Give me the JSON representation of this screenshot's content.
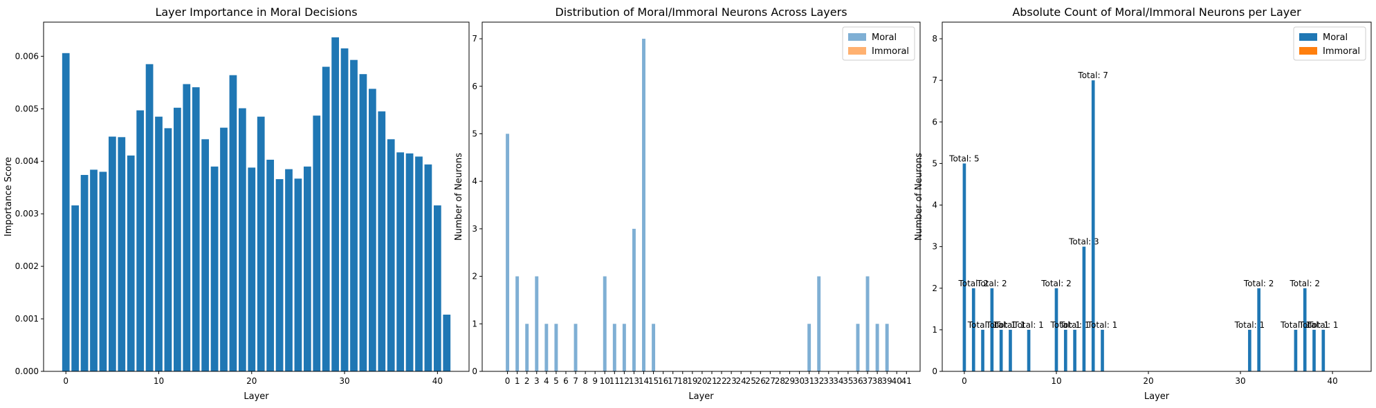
{
  "colors": {
    "bar_blue": "#1f77b4",
    "moral_light": "#7fafd4",
    "immoral_light": "#ffb170",
    "immoral": "#ff7f0e"
  },
  "chart_data": [
    {
      "type": "bar",
      "title": "Layer Importance in Moral Decisions",
      "xlabel": "Layer",
      "ylabel": "Importance Score",
      "x": [
        0,
        1,
        2,
        3,
        4,
        5,
        6,
        7,
        8,
        9,
        10,
        11,
        12,
        13,
        14,
        15,
        16,
        17,
        18,
        19,
        20,
        21,
        22,
        23,
        24,
        25,
        26,
        27,
        28,
        29,
        30,
        31,
        32,
        33,
        34,
        35,
        36,
        37,
        38,
        39,
        40,
        41
      ],
      "values": [
        0.00606,
        0.00316,
        0.00374,
        0.00384,
        0.0038,
        0.00447,
        0.00446,
        0.00411,
        0.00497,
        0.00585,
        0.00485,
        0.00463,
        0.00502,
        0.00547,
        0.00541,
        0.00442,
        0.0039,
        0.00464,
        0.00564,
        0.00501,
        0.00388,
        0.00485,
        0.00403,
        0.00366,
        0.00385,
        0.00367,
        0.0039,
        0.00487,
        0.0058,
        0.00636,
        0.00615,
        0.00593,
        0.00566,
        0.00538,
        0.00495,
        0.00442,
        0.00417,
        0.00415,
        0.00409,
        0.00394,
        0.00316,
        0.00108
      ],
      "xlim": [
        -2.4,
        43.4
      ],
      "ylim": [
        0,
        0.00665
      ],
      "xticks": [
        0,
        10,
        20,
        30,
        40
      ],
      "xtick_labels": [
        "0",
        "10",
        "20",
        "30",
        "40"
      ],
      "yticks": [
        0,
        0.001,
        0.002,
        0.003,
        0.004,
        0.005,
        0.006
      ],
      "ytick_labels": [
        "0.000",
        "0.001",
        "0.002",
        "0.003",
        "0.004",
        "0.005",
        "0.006"
      ]
    },
    {
      "type": "bar",
      "title": "Distribution of Moral/Immoral Neurons Across Layers",
      "xlabel": "Layer",
      "ylabel": "Number of Neurons",
      "categories": [
        "0",
        "1",
        "2",
        "3",
        "4",
        "5",
        "6",
        "7",
        "8",
        "9",
        "10",
        "11",
        "12",
        "13",
        "14",
        "15",
        "16",
        "17",
        "18",
        "19",
        "20",
        "21",
        "22",
        "23",
        "24",
        "25",
        "26",
        "27",
        "28",
        "29",
        "30",
        "31",
        "32",
        "33",
        "34",
        "35",
        "36",
        "37",
        "38",
        "39",
        "40",
        "41"
      ],
      "series": [
        {
          "name": "Moral",
          "values": [
            5,
            2,
            1,
            2,
            1,
            1,
            0,
            1,
            0,
            0,
            2,
            1,
            1,
            3,
            7,
            1,
            0,
            0,
            0,
            0,
            0,
            0,
            0,
            0,
            0,
            0,
            0,
            0,
            0,
            0,
            0,
            1,
            2,
            0,
            0,
            0,
            1,
            2,
            1,
            1,
            0,
            0
          ]
        },
        {
          "name": "Immoral",
          "values": [
            0,
            0,
            0,
            0,
            0,
            0,
            0,
            0,
            0,
            0,
            0,
            0,
            0,
            0,
            0,
            0,
            0,
            0,
            0,
            0,
            0,
            0,
            0,
            0,
            0,
            0,
            0,
            0,
            0,
            0,
            0,
            0,
            0,
            0,
            0,
            0,
            0,
            0,
            0,
            0,
            0,
            0
          ]
        }
      ],
      "xlim": [
        -2.6,
        42.4
      ],
      "ylim": [
        0,
        7.35
      ],
      "yticks": [
        0,
        1,
        2,
        3,
        4,
        5,
        6,
        7
      ],
      "ytick_labels": [
        "0",
        "1",
        "2",
        "3",
        "4",
        "5",
        "6",
        "7"
      ],
      "legend": "top-right"
    },
    {
      "type": "bar",
      "title": "Absolute Count of Moral/Immoral Neurons per Layer",
      "xlabel": "Layer",
      "ylabel": "Number of Neurons",
      "x": [
        0,
        1,
        2,
        3,
        4,
        5,
        7,
        10,
        11,
        12,
        13,
        14,
        15,
        31,
        32,
        36,
        37,
        38,
        39
      ],
      "series": [
        {
          "name": "Moral",
          "values": [
            5,
            2,
            1,
            2,
            1,
            1,
            1,
            2,
            1,
            1,
            3,
            7,
            1,
            1,
            2,
            1,
            2,
            1,
            1
          ]
        },
        {
          "name": "Immoral",
          "values": [
            0,
            0,
            0,
            0,
            0,
            0,
            0,
            0,
            0,
            0,
            0,
            0,
            0,
            0,
            0,
            0,
            0,
            0,
            0
          ]
        }
      ],
      "annotations": [
        "Total: 5",
        "Total: 2",
        "Total: 1",
        "Total: 2",
        "Total: 1",
        "Total: 1",
        "Total: 1",
        "Total: 2",
        "Total: 1",
        "Total: 1",
        "Total: 3",
        "Total: 7",
        "Total: 1",
        "Total: 1",
        "Total: 2",
        "Total: 1",
        "Total: 2",
        "Total: 1",
        "Total: 1"
      ],
      "xlim": [
        -2.4,
        44.2
      ],
      "ylim": [
        0,
        8.4
      ],
      "xticks": [
        0,
        10,
        20,
        30,
        40
      ],
      "xtick_labels": [
        "0",
        "10",
        "20",
        "30",
        "40"
      ],
      "yticks": [
        0,
        1,
        2,
        3,
        4,
        5,
        6,
        7,
        8
      ],
      "ytick_labels": [
        "0",
        "1",
        "2",
        "3",
        "4",
        "5",
        "6",
        "7",
        "8"
      ],
      "legend": "top-right"
    }
  ]
}
